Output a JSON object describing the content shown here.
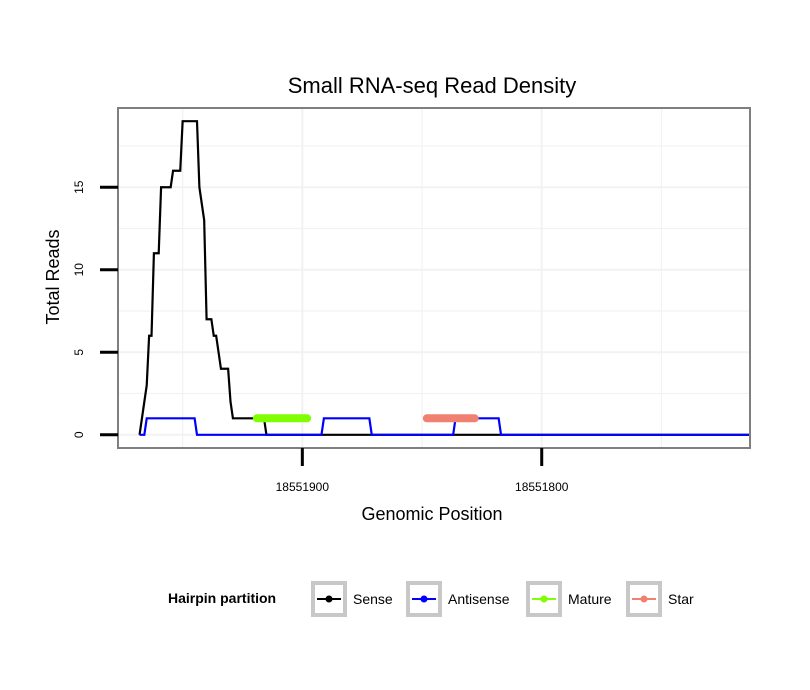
{
  "chart_data": {
    "type": "line",
    "title": "Small RNA-seq Read Density",
    "xlabel": "Genomic Position",
    "ylabel": "Total Reads",
    "x_reversed": true,
    "xlim": [
      18551977,
      18551713
    ],
    "ylim": [
      -0.8,
      19.8
    ],
    "x_ticks": [
      {
        "value": 18551900,
        "label": "18551900"
      },
      {
        "value": 18551800,
        "label": "18551800"
      }
    ],
    "y_ticks": [
      {
        "value": 0,
        "label": "0"
      },
      {
        "value": 5,
        "label": "5"
      },
      {
        "value": 10,
        "label": "10"
      },
      {
        "value": 15,
        "label": "15"
      }
    ],
    "grid": true,
    "series": [
      {
        "name": "Sense",
        "color": "#000000",
        "points": [
          [
            18551968,
            0
          ],
          [
            18551966,
            2
          ],
          [
            18551965,
            3
          ],
          [
            18551964,
            6
          ],
          [
            18551963,
            6
          ],
          [
            18551962,
            11
          ],
          [
            18551960,
            11
          ],
          [
            18551959,
            15
          ],
          [
            18551955,
            15
          ],
          [
            18551954,
            16
          ],
          [
            18551951,
            16
          ],
          [
            18551950,
            19
          ],
          [
            18551944,
            19
          ],
          [
            18551943,
            15
          ],
          [
            18551941,
            13
          ],
          [
            18551940,
            7
          ],
          [
            18551938,
            7
          ],
          [
            18551937,
            6
          ],
          [
            18551936,
            6
          ],
          [
            18551935,
            5
          ],
          [
            18551934,
            4
          ],
          [
            18551931,
            4
          ],
          [
            18551930,
            2
          ],
          [
            18551929,
            1
          ],
          [
            18551916,
            1
          ],
          [
            18551915,
            0
          ],
          [
            18551713,
            0
          ]
        ]
      },
      {
        "name": "Antisense",
        "color": "#0000ff",
        "points": [
          [
            18551968,
            0
          ],
          [
            18551966,
            0
          ],
          [
            18551965,
            1
          ],
          [
            18551945,
            1
          ],
          [
            18551944,
            0
          ],
          [
            18551892,
            0
          ],
          [
            18551891,
            1
          ],
          [
            18551872,
            1
          ],
          [
            18551871,
            0
          ],
          [
            18551837,
            0
          ],
          [
            18551836,
            1
          ],
          [
            18551818,
            1
          ],
          [
            18551817,
            0
          ],
          [
            18551713,
            0
          ]
        ]
      },
      {
        "name": "Mature",
        "color": "#7fff00",
        "points": [
          [
            18551919,
            1
          ],
          [
            18551898,
            1
          ]
        ]
      },
      {
        "name": "Star",
        "color": "#f08070",
        "points": [
          [
            18551848,
            1
          ],
          [
            18551828,
            1
          ]
        ]
      }
    ],
    "legend": {
      "title": "Hairpin partition",
      "position": "bottom",
      "entries": [
        "Sense",
        "Antisense",
        "Mature",
        "Star"
      ]
    }
  }
}
